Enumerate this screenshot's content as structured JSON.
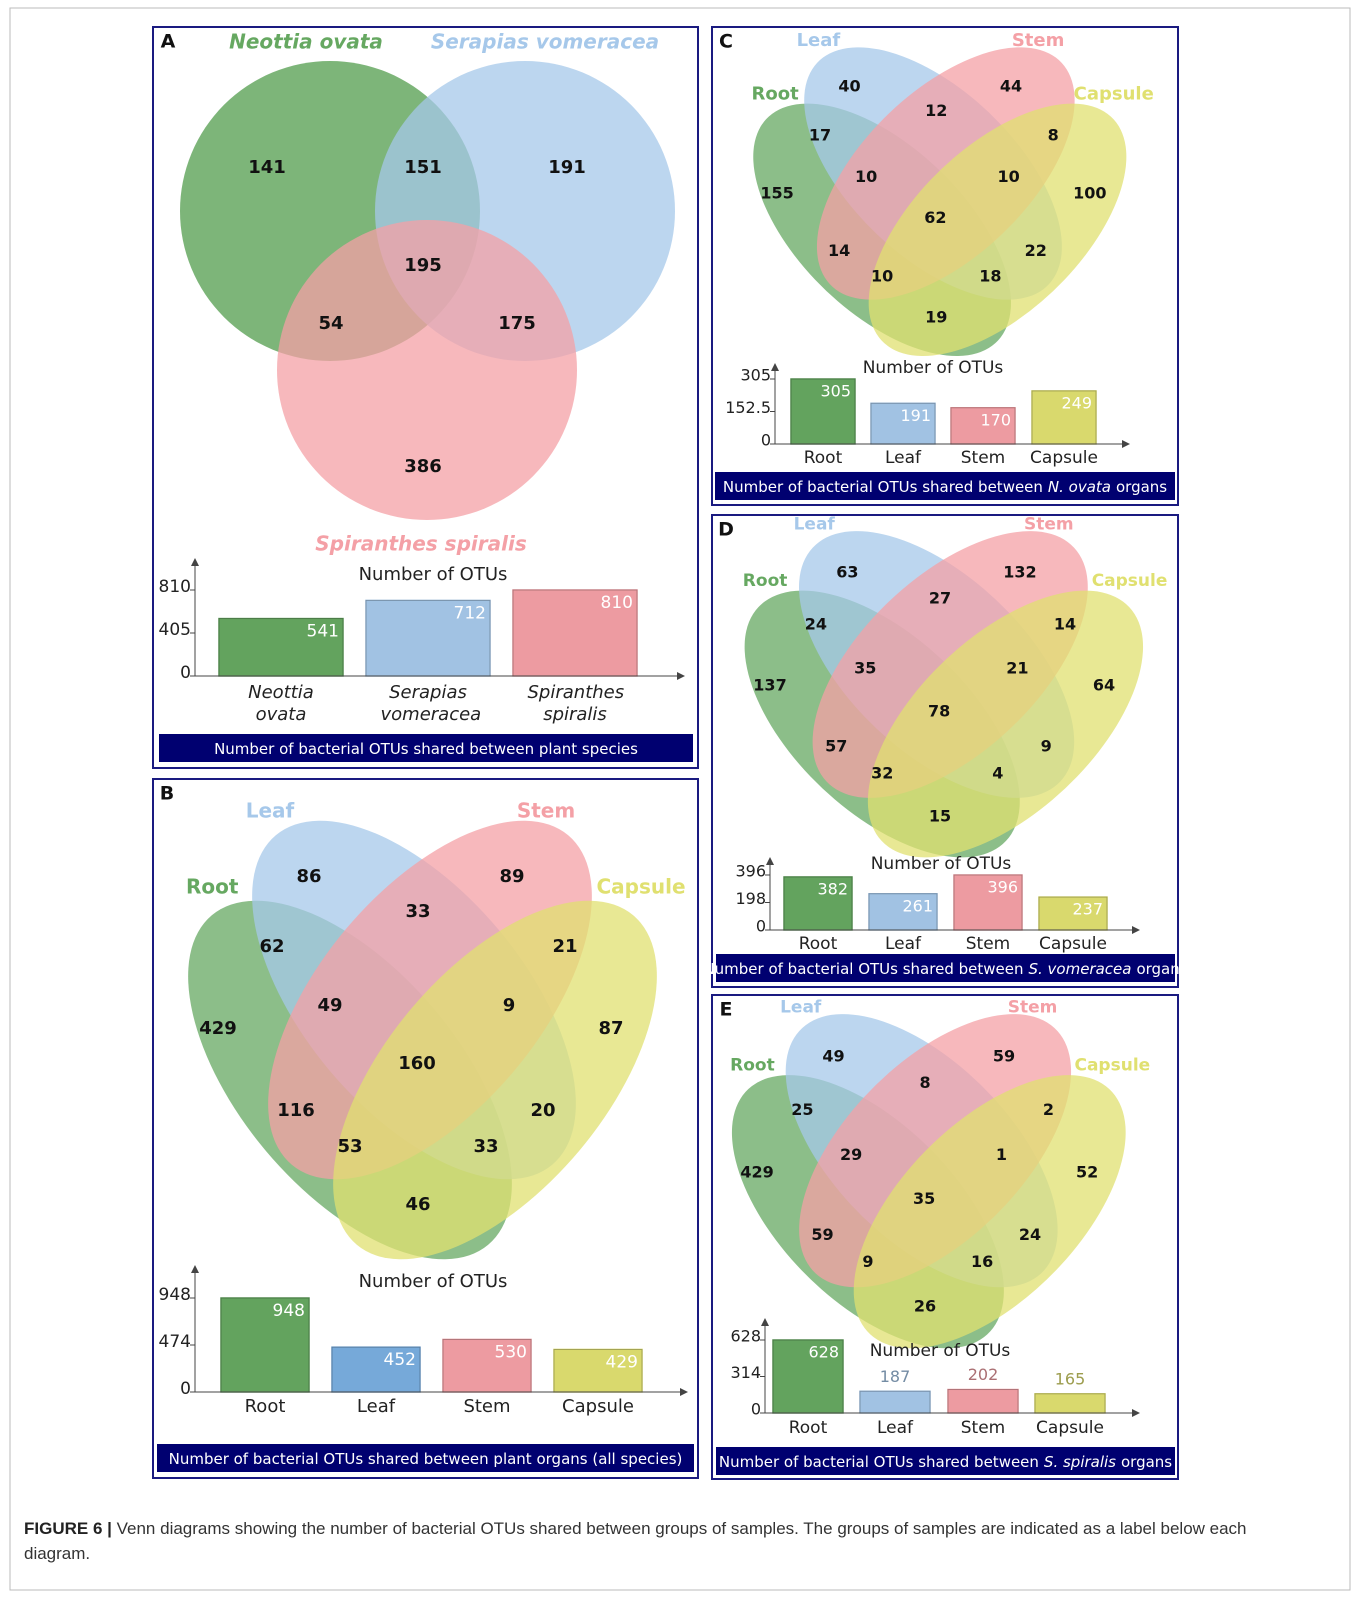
{
  "chart_data": [
    {
      "type": "venn",
      "letter": "A",
      "sets": [
        {
          "name": "Neottia ovata",
          "color": "#66a861"
        },
        {
          "name": "Serapias vomeracea",
          "color": "#a6c8ea"
        },
        {
          "name": "Spiranthes spiralis",
          "color": "#f4a0a6"
        }
      ],
      "regions": [
        141,
        151,
        191,
        195,
        54,
        175,
        386
      ],
      "bar_chart": {
        "type": "bar",
        "title": "Number of OTUs",
        "categories": [
          "Neottia ovata",
          "Serapias vomeracea",
          "Spiranthes spiralis"
        ],
        "category_style": "italic",
        "values": [
          541,
          712,
          810
        ],
        "colors": [
          "#66a861",
          "#a6c8ea",
          "#f4a0a6"
        ],
        "ylim": [
          0,
          810
        ],
        "yticks": [
          0,
          405,
          810
        ],
        "footer": [
          "Number of bacterial OTUs shared between plant species"
        ]
      }
    },
    {
      "type": "venn",
      "letter": "B",
      "sets": [
        {
          "name": "Root",
          "color": "#66a861"
        },
        {
          "name": "Leaf",
          "color": "#a6c8ea"
        },
        {
          "name": "Stem",
          "color": "#f4a0a6"
        },
        {
          "name": "Capsule",
          "color": "#e0e070"
        }
      ],
      "regions": [
        86,
        89,
        33,
        62,
        21,
        49,
        9,
        429,
        87,
        160,
        116,
        20,
        53,
        33,
        46
      ],
      "bar_chart": {
        "type": "bar",
        "title": "Number of OTUs",
        "categories": [
          "Root",
          "Leaf",
          "Stem",
          "Capsule"
        ],
        "values": [
          948,
          452,
          530,
          429
        ],
        "colors": [
          "#66a861",
          "#7aaee0",
          "#f4a0a6",
          "#e0e070"
        ],
        "ylim": [
          0,
          948
        ],
        "yticks": [
          0,
          474,
          948
        ],
        "footer": [
          "Number of bacterial OTUs shared between plant organs (all species)"
        ]
      }
    },
    {
      "type": "venn",
      "letter": "C",
      "sets": [
        {
          "name": "Root",
          "color": "#66a861"
        },
        {
          "name": "Leaf",
          "color": "#a6c8ea"
        },
        {
          "name": "Stem",
          "color": "#f4a0a6"
        },
        {
          "name": "Capsule",
          "color": "#e0e070"
        }
      ],
      "regions": [
        40,
        44,
        12,
        17,
        8,
        10,
        10,
        155,
        100,
        62,
        14,
        22,
        10,
        18,
        19
      ],
      "bar_chart": {
        "type": "bar",
        "title": "Number of OTUs",
        "categories": [
          "Root",
          "Leaf",
          "Stem",
          "Capsule"
        ],
        "values": [
          305,
          191,
          170,
          249
        ],
        "colors": [
          "#66a861",
          "#a6c8ea",
          "#f4a0a6",
          "#e0e070"
        ],
        "ylim": [
          0,
          305
        ],
        "yticks": [
          0,
          152.5,
          305
        ],
        "footer": [
          "Number of bacterial OTUs shared between",
          "N. ovata",
          "organs"
        ]
      }
    },
    {
      "type": "venn",
      "letter": "D",
      "sets": [
        {
          "name": "Root",
          "color": "#66a861"
        },
        {
          "name": "Leaf",
          "color": "#a6c8ea"
        },
        {
          "name": "Stem",
          "color": "#f4a0a6"
        },
        {
          "name": "Capsule",
          "color": "#e0e070"
        }
      ],
      "regions": [
        63,
        132,
        27,
        24,
        14,
        35,
        21,
        137,
        64,
        78,
        57,
        9,
        32,
        4,
        15
      ],
      "bar_chart": {
        "type": "bar",
        "title": "Number of OTUs",
        "categories": [
          "Root",
          "Leaf",
          "Stem",
          "Capsule"
        ],
        "values": [
          382,
          261,
          396,
          237
        ],
        "colors": [
          "#66a861",
          "#a6c8ea",
          "#f4a0a6",
          "#e0e070"
        ],
        "ylim": [
          0,
          396
        ],
        "yticks": [
          0,
          198,
          396
        ],
        "footer": [
          "Number of bacterial OTUs shared between",
          "S. vomeracea",
          "organs"
        ]
      }
    },
    {
      "type": "venn",
      "letter": "E",
      "sets": [
        {
          "name": "Root",
          "color": "#66a861"
        },
        {
          "name": "Leaf",
          "color": "#a6c8ea"
        },
        {
          "name": "Stem",
          "color": "#f4a0a6"
        },
        {
          "name": "Capsule",
          "color": "#e0e070"
        }
      ],
      "regions": [
        49,
        59,
        8,
        25,
        2,
        29,
        1,
        429,
        52,
        35,
        59,
        24,
        9,
        16,
        26
      ],
      "bar_chart": {
        "type": "bar",
        "title": "Number of OTUs",
        "categories": [
          "Root",
          "Leaf",
          "Stem",
          "Capsule"
        ],
        "values": [
          628,
          187,
          202,
          165
        ],
        "colors": [
          "#66a861",
          "#a6c8ea",
          "#f4a0a6",
          "#e0e070"
        ],
        "ylim": [
          0,
          628
        ],
        "yticks": [
          0,
          314,
          628
        ],
        "footer": [
          "Number of bacterial OTUs shared between",
          "S. spiralis",
          "organs"
        ]
      }
    }
  ],
  "caption": {
    "label": "FIGURE 6 |",
    "text": "Venn diagrams showing the number of bacterial OTUs shared between groups of samples. The groups of samples are indicated as a label below each diagram."
  }
}
